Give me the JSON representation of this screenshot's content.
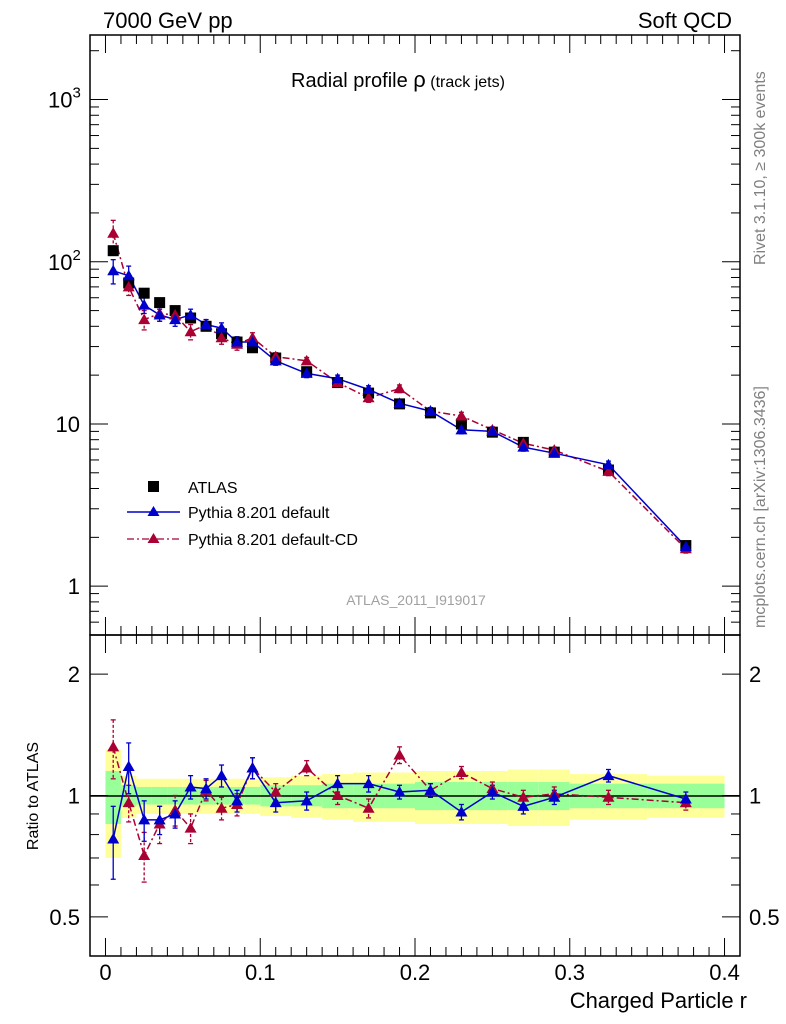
{
  "header": {
    "left": "7000 GeV pp",
    "right": "Soft QCD"
  },
  "side_labels": {
    "rivet": "Rivet 3.1.10, ≥ 300k events",
    "mcplots": "mcplots.cern.ch [arXiv:1306.3436]"
  },
  "colors": {
    "atlas": "#000000",
    "pythia_default": "#0000cc",
    "pythia_cd": "#aa0033",
    "band_green": "#99ff99",
    "band_yellow": "#ffff99"
  },
  "chart_data": [
    {
      "type": "scatter",
      "title_main": "Radial profile ",
      "title_symbol": "ρ",
      "title_suffix": " (track jets)",
      "watermark": "ATLAS_2011_I919017",
      "yscale": "log",
      "ylim": [
        0.5,
        2500
      ],
      "xlim": [
        -0.01,
        0.41
      ],
      "ytick_labels": [
        "1",
        "10"
      ],
      "ytick_labels_pow": [
        {
          "base": "10",
          "exp": "2",
          "value": 100
        },
        {
          "base": "10",
          "exp": "3",
          "value": 1000
        }
      ],
      "legend_position": "lower-left",
      "x": [
        0.005,
        0.015,
        0.025,
        0.035,
        0.045,
        0.055,
        0.065,
        0.075,
        0.085,
        0.095,
        0.11,
        0.13,
        0.15,
        0.17,
        0.19,
        0.21,
        0.23,
        0.25,
        0.27,
        0.29,
        0.325,
        0.375
      ],
      "series": [
        {
          "name": "ATLAS",
          "style": "marker-square",
          "values": [
            117,
            74,
            64,
            56,
            50,
            45,
            40,
            36,
            32,
            29.5,
            25.5,
            21,
            18,
            15.5,
            13.3,
            11.7,
            10,
            8.9,
            7.7,
            6.7,
            5.2,
            1.78
          ]
        },
        {
          "name": "Pythia 8.201 default",
          "style": "solid-triangle",
          "values": [
            88,
            82,
            54,
            47,
            44,
            47,
            41,
            39,
            32,
            32,
            24.5,
            20.5,
            19,
            16.3,
            13.4,
            12,
            9.2,
            9,
            7.2,
            6.6,
            5.6,
            1.75
          ],
          "err": [
            15,
            12,
            6,
            4,
            4,
            4,
            3,
            3,
            2.5,
            2.5,
            1.5,
            1.2,
            1,
            0.9,
            0.7,
            0.6,
            0.5,
            0.4,
            0.4,
            0.3,
            0.3,
            0.1
          ]
        },
        {
          "name": "Pythia 8.201 default-CD",
          "style": "dashdot-triangle",
          "values": [
            150,
            70,
            44,
            48,
            47,
            37,
            41,
            34,
            31,
            34,
            26,
            24.5,
            18,
            14.5,
            16.5,
            12,
            11.2,
            9.2,
            7.6,
            6.9,
            5.1,
            1.7
          ],
          "err": [
            30,
            8,
            6,
            5,
            4,
            4,
            3,
            3,
            2.5,
            2.5,
            1.5,
            1.2,
            1,
            0.9,
            0.9,
            0.6,
            0.6,
            0.4,
            0.4,
            0.3,
            0.3,
            0.1
          ]
        }
      ]
    },
    {
      "type": "scatter",
      "ylabel": "Ratio to ATLAS",
      "xlabel": "Charged Particle r",
      "yscale": "log",
      "ylim": [
        0.4,
        2.5
      ],
      "xlim": [
        -0.01,
        0.41
      ],
      "ytick_labels": [
        "0.5",
        "1",
        "2"
      ],
      "xtick_labels": [
        "0",
        "0.1",
        "0.2",
        "0.3",
        "0.4"
      ],
      "x_edges": [
        0,
        0.01,
        0.02,
        0.03,
        0.04,
        0.05,
        0.06,
        0.07,
        0.08,
        0.09,
        0.1,
        0.12,
        0.14,
        0.16,
        0.18,
        0.2,
        0.22,
        0.24,
        0.26,
        0.28,
        0.3,
        0.35,
        0.4
      ],
      "band_inner": [
        0.15,
        0.06,
        0.05,
        0.05,
        0.05,
        0.05,
        0.05,
        0.05,
        0.05,
        0.05,
        0.06,
        0.06,
        0.07,
        0.07,
        0.07,
        0.08,
        0.08,
        0.08,
        0.08,
        0.08,
        0.07,
        0.07
      ],
      "band_outer": [
        0.3,
        0.12,
        0.1,
        0.1,
        0.1,
        0.1,
        0.1,
        0.1,
        0.1,
        0.1,
        0.11,
        0.12,
        0.13,
        0.14,
        0.14,
        0.15,
        0.15,
        0.15,
        0.16,
        0.16,
        0.13,
        0.12
      ],
      "series": [
        {
          "name": "Pythia 8.201 default",
          "values": [
            0.78,
            1.18,
            0.87,
            0.87,
            0.9,
            1.05,
            1.04,
            1.12,
            0.97,
            1.17,
            0.96,
            0.97,
            1.07,
            1.07,
            1.02,
            1.03,
            0.91,
            1.02,
            0.94,
            0.99,
            1.12,
            0.98
          ],
          "err": [
            0.16,
            0.17,
            0.1,
            0.07,
            0.07,
            0.07,
            0.06,
            0.07,
            0.06,
            0.07,
            0.05,
            0.05,
            0.05,
            0.05,
            0.04,
            0.04,
            0.04,
            0.04,
            0.04,
            0.04,
            0.04,
            0.04
          ]
        },
        {
          "name": "Pythia 8.201 default-CD",
          "values": [
            1.32,
            0.96,
            0.71,
            0.85,
            0.92,
            0.83,
            1.03,
            0.93,
            0.95,
            1.17,
            1.02,
            1.17,
            1.0,
            0.93,
            1.26,
            1.03,
            1.14,
            1.04,
            0.99,
            1.01,
            0.99,
            0.96
          ],
          "err": [
            0.22,
            0.1,
            0.1,
            0.09,
            0.08,
            0.07,
            0.06,
            0.06,
            0.06,
            0.07,
            0.05,
            0.05,
            0.05,
            0.05,
            0.06,
            0.04,
            0.04,
            0.04,
            0.04,
            0.04,
            0.04,
            0.04
          ]
        }
      ]
    }
  ]
}
